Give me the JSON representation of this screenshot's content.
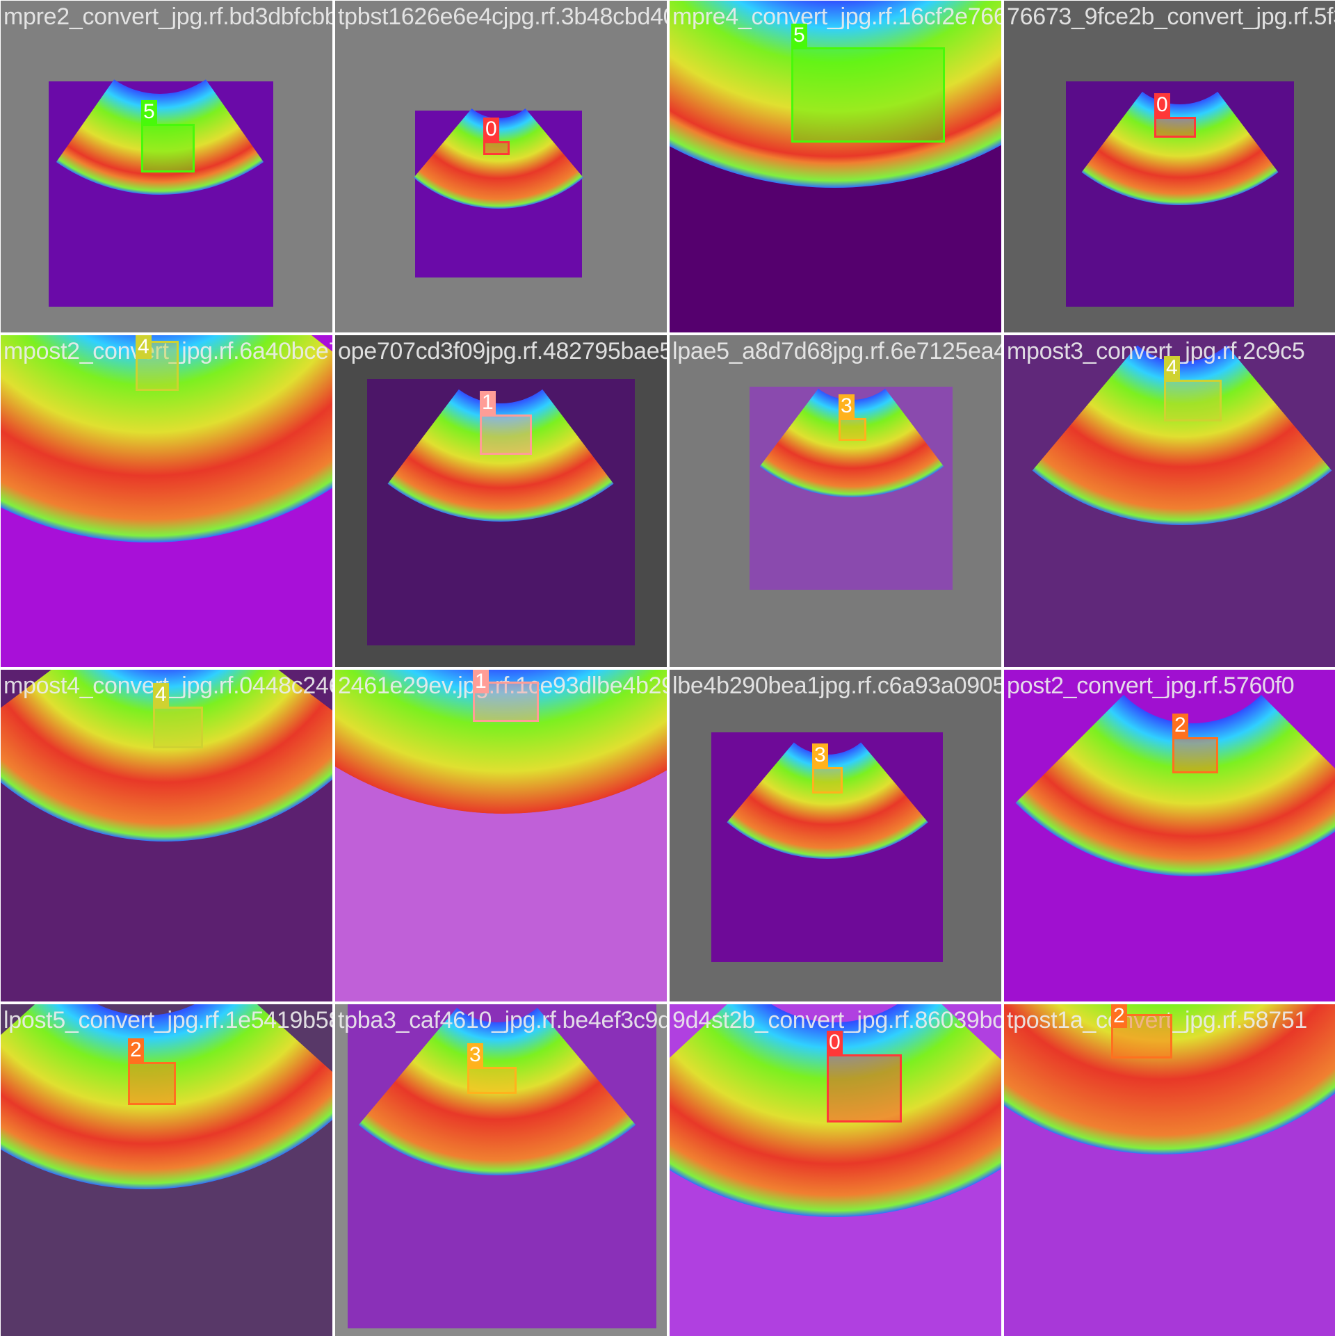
{
  "class_colors": {
    "0": "#ff3838",
    "1": "#ff9d97",
    "2": "#ff701f",
    "3": "#ffb21d",
    "4": "#cfd231",
    "5": "#48f90a"
  },
  "tiles": [
    {
      "filename": "mpre2_convert_jpg.rf.bd3dbfcbbd4626ebe4cjpg.rf.3b48c",
      "class_label": "5",
      "bg": "#808080",
      "panel": "#6a0aa8"
    },
    {
      "filename": "tpbst1626e6e4cjpg.rf.3b48cbd4041b6986e6jpg.rf.16cf2e",
      "class_label": "0",
      "bg": "#808080",
      "panel": "#6a0aa8"
    },
    {
      "filename": "mpre4_convert_jpg.rf.16cf2e766a3cfee2b_jpg.rf.5f3e8",
      "class_label": "5",
      "bg": "#55006e",
      "panel": "#55006e"
    },
    {
      "filename": "76673_9fce2b_convert_jpg.rf.5f3e8",
      "class_label": "0",
      "bg": "#606060",
      "panel": "#5a0c8a"
    },
    {
      "filename": "mpost2_convert_jpg.rf.6a40bce707cd63f09jpg.rf.482795",
      "class_label": "4",
      "bg": "#a810d8",
      "panel": "#a810d8"
    },
    {
      "filename": "ope707cd3f09jpg.rf.482795bae5_a8d7d68jpg.rf.6e7125",
      "class_label": "1",
      "bg": "#4a4a4a",
      "panel": "#4c1668"
    },
    {
      "filename": "lpae5_a8d7d68jpg.rf.6e7125ea4058563c625rt_jpg.rf.2c9c5",
      "class_label": "3",
      "bg": "#7a7a7a",
      "panel": "#8a4aae"
    },
    {
      "filename": "mpost3_convert_jpg.rf.2c9c5",
      "class_label": "4",
      "bg": "#60287a",
      "panel": "#60287a"
    },
    {
      "filename": "mpost4_convert_jpg.rf.0448c2461e29ev.jpg.rf.1ce93d",
      "class_label": "4",
      "bg": "#5c2070",
      "panel": "#5c2070"
    },
    {
      "filename": "2461e29ev.jpg.rf.1ce93dlbe4b290bea1jpg.rf.c6a93a",
      "class_label": "1",
      "bg": "#c060d8",
      "panel": "#c060d8"
    },
    {
      "filename": "lbe4b290bea1jpg.rf.c6a93a0905f2e37ed65_jpg.rf.5760f0",
      "class_label": "3",
      "bg": "#6a6a6a",
      "panel": "#6e0a98"
    },
    {
      "filename": "post2_convert_jpg.rf.5760f0",
      "class_label": "2",
      "bg": "#a010d0",
      "panel": "#a010d0"
    },
    {
      "filename": "lpost5_convert_jpg.rf.1e5419b583_caf4610_jpg.rf.be4ef3c",
      "class_label": "2",
      "bg": "#583868",
      "panel": "#583868"
    },
    {
      "filename": "tpba3_caf4610_jpg.rf.be4ef3c9d4st2b_convert_jpg.rf.86039",
      "class_label": "3",
      "bg": "#8a8a8a",
      "panel": "#8a30b8"
    },
    {
      "filename": "9d4st2b_convert_jpg.rf.86039bc58ac19_convert_jpg.rf.58751",
      "class_label": "0",
      "bg": "#b040e0",
      "panel": "#b040e0"
    },
    {
      "filename": "tpost1a_convert_jpg.rf.58751",
      "class_label": "2",
      "bg": "#a838d8",
      "panel": "#a838d8"
    }
  ]
}
